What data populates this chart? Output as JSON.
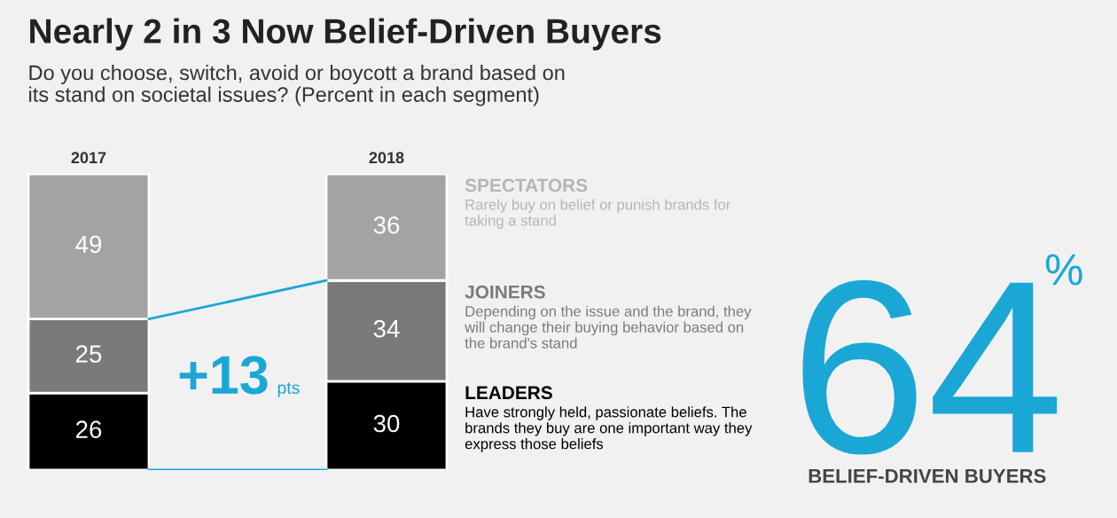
{
  "chart_data": {
    "type": "bar",
    "stacked": true,
    "data_labels": true,
    "title": "Nearly 2 in 3 Now Belief-Driven Buyers",
    "subtitle": "Do you choose, switch, avoid or boycott a brand based on\nits stand on societal issues? (Percent in each segment)",
    "categories": [
      "2017",
      "2018"
    ],
    "series": [
      {
        "name": "LEADERS",
        "color": "#000000",
        "values": [
          26,
          30
        ]
      },
      {
        "name": "JOINERS",
        "color": "#7a7a7a",
        "values": [
          25,
          34
        ]
      },
      {
        "name": "SPECTATORS",
        "color": "#a3a3a3",
        "values": [
          49,
          36
        ]
      }
    ],
    "annotations": [
      "Have strongly held, passionate beliefs. The brands they buy are one important way they express those beliefs",
      "Depending on the issue and the brand, they will change their buying behavior based on the brand's stand",
      "Rarely buy on belief or punish brands for taking a stand",
      "+13",
      "pts",
      "64",
      "%",
      "BELIEF-DRIVEN BUYERS"
    ]
  }
}
